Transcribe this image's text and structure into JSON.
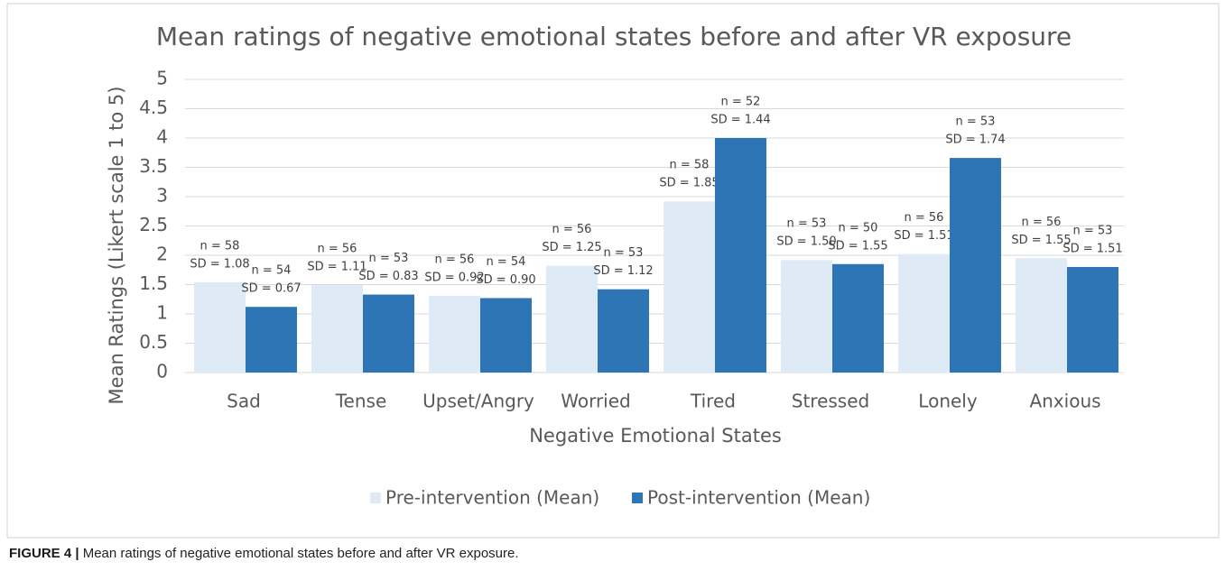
{
  "chart_data": {
    "type": "bar",
    "title": "Mean ratings of negative emotional states before and after VR exposure",
    "x_label": "Negative Emotional States",
    "y_label": "Mean Ratings (Likert scale 1 to 5)",
    "categories": [
      "Sad",
      "Tense",
      "Upset/Angry",
      "Worried",
      "Tired",
      "Stressed",
      "Lonely",
      "Anxious"
    ],
    "series": [
      {
        "name": "Pre-intervention (Mean)",
        "color": "#deebf7",
        "values": [
          1.54,
          1.49,
          1.31,
          1.82,
          2.92,
          1.92,
          2.02,
          1.95
        ],
        "labels": [
          [
            "n = 58",
            "SD = 1.08"
          ],
          [
            "n = 56",
            "SD = 1.11"
          ],
          [
            "n = 56",
            "SD = 0.92"
          ],
          [
            "n = 56",
            "SD = 1.25"
          ],
          [
            "n = 58",
            "SD = 1.85"
          ],
          [
            "n = 53",
            "SD = 1.50"
          ],
          [
            "n = 56",
            "SD = 1.51"
          ],
          [
            "n = 56",
            "SD = 1.55"
          ]
        ]
      },
      {
        "name": "Post-intervention (Mean)",
        "color": "#2e75b6",
        "values": [
          1.12,
          1.33,
          1.27,
          1.42,
          4.0,
          1.85,
          3.66,
          1.8
        ],
        "labels": [
          [
            "n = 54",
            "SD = 0.67"
          ],
          [
            "n = 53",
            "SD = 0.83"
          ],
          [
            "n = 54",
            "SD = 0.90"
          ],
          [
            "n = 53",
            "SD = 1.12"
          ],
          [
            "n = 52",
            "SD = 1.44"
          ],
          [
            "n = 50",
            "SD = 1.55"
          ],
          [
            "n = 53",
            "SD = 1.74"
          ],
          [
            "n = 53",
            "SD = 1.51"
          ]
        ]
      }
    ],
    "ylim": [
      0,
      5
    ],
    "yticks": [
      0,
      0.5,
      1,
      1.5,
      2,
      2.5,
      3,
      3.5,
      4,
      4.5,
      5
    ],
    "grid": true,
    "legend": "bottom"
  },
  "caption": {
    "label": "FIGURE 4 |",
    "text": "Mean ratings of negative emotional states before and after VR exposure."
  }
}
